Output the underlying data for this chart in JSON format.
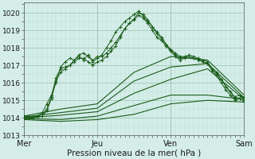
{
  "bg_color": "#d4ede8",
  "plot_bg_color": "#d4ede8",
  "grid_major_color": "#a0c8b8",
  "grid_minor_color": "#b8dcd4",
  "line_color": "#1a5c1a",
  "xlabel": "Pression niveau de la mer( hPa )",
  "ylim": [
    1013.0,
    1020.6
  ],
  "yticks": [
    1013,
    1014,
    1015,
    1016,
    1017,
    1018,
    1019,
    1020
  ],
  "day_labels": [
    "Mer",
    "Jeu",
    "Ven",
    "Sam"
  ],
  "day_positions": [
    0,
    96,
    192,
    288
  ],
  "total_hours": 288,
  "series": [
    {
      "x": [
        0,
        6,
        12,
        18,
        24,
        30,
        36,
        42,
        48,
        54,
        60,
        66,
        72,
        78,
        84,
        90,
        96,
        102,
        108,
        114,
        120,
        126,
        132,
        138,
        144,
        150,
        156,
        162,
        168,
        174,
        180,
        186,
        192,
        198,
        204,
        210,
        216,
        222,
        228,
        234,
        240,
        246,
        252,
        258,
        264,
        270,
        276,
        282,
        288
      ],
      "y": [
        1014.1,
        1014.1,
        1014.05,
        1014.1,
        1014.3,
        1014.8,
        1015.3,
        1016.0,
        1016.9,
        1017.2,
        1017.4,
        1017.3,
        1017.5,
        1017.3,
        1017.6,
        1017.2,
        1017.4,
        1017.6,
        1018.0,
        1018.4,
        1018.9,
        1019.2,
        1019.5,
        1019.7,
        1019.9,
        1020.1,
        1019.8,
        1019.5,
        1019.2,
        1018.8,
        1018.5,
        1018.2,
        1017.9,
        1017.7,
        1017.5,
        1017.5,
        1017.6,
        1017.5,
        1017.4,
        1017.3,
        1017.2,
        1016.8,
        1016.5,
        1016.2,
        1015.8,
        1015.5,
        1015.2,
        1015.3,
        1015.1
      ],
      "style": "marker"
    },
    {
      "x": [
        0,
        6,
        12,
        18,
        24,
        30,
        36,
        42,
        48,
        54,
        60,
        66,
        72,
        78,
        84,
        90,
        96,
        102,
        108,
        114,
        120,
        126,
        132,
        138,
        144,
        150,
        156,
        162,
        168,
        174,
        180,
        186,
        192,
        198,
        204,
        210,
        216,
        222,
        228,
        234,
        240,
        246,
        252,
        258,
        264,
        270,
        276,
        282,
        288
      ],
      "y": [
        1014.0,
        1014.0,
        1014.05,
        1014.1,
        1014.2,
        1014.5,
        1015.2,
        1016.3,
        1016.8,
        1016.9,
        1017.0,
        1017.3,
        1017.6,
        1017.7,
        1017.5,
        1017.3,
        1017.5,
        1017.5,
        1017.7,
        1018.0,
        1018.3,
        1018.7,
        1019.1,
        1019.4,
        1019.6,
        1019.85,
        1019.7,
        1019.4,
        1019.0,
        1018.6,
        1018.4,
        1018.1,
        1017.8,
        1017.5,
        1017.3,
        1017.4,
        1017.5,
        1017.4,
        1017.3,
        1017.2,
        1017.1,
        1016.7,
        1016.4,
        1016.0,
        1015.6,
        1015.3,
        1015.0,
        1015.1,
        1014.95
      ],
      "style": "marker"
    },
    {
      "x": [
        0,
        6,
        12,
        18,
        24,
        30,
        36,
        42,
        48,
        54,
        60,
        66,
        72,
        78,
        84,
        90,
        96,
        102,
        108,
        114,
        120,
        126,
        132,
        138,
        144,
        150,
        156,
        162,
        168,
        174,
        180,
        186,
        192,
        198,
        204,
        210,
        216,
        222,
        228,
        234,
        240,
        252,
        264,
        276,
        288
      ],
      "y": [
        1014.05,
        1014.0,
        1014.0,
        1014.05,
        1014.1,
        1014.4,
        1015.1,
        1016.1,
        1016.6,
        1016.8,
        1017.0,
        1017.2,
        1017.4,
        1017.4,
        1017.2,
        1017.0,
        1017.2,
        1017.3,
        1017.5,
        1017.8,
        1018.1,
        1018.6,
        1019.1,
        1019.4,
        1019.65,
        1020.0,
        1019.9,
        1019.6,
        1019.2,
        1018.9,
        1018.6,
        1018.2,
        1017.85,
        1017.6,
        1017.4,
        1017.45,
        1017.5,
        1017.4,
        1017.35,
        1017.2,
        1017.1,
        1016.6,
        1015.8,
        1015.1,
        1015.2
      ],
      "style": "marker"
    },
    {
      "x": [
        0,
        48,
        96,
        144,
        192,
        240,
        288
      ],
      "y": [
        1014.1,
        1014.5,
        1014.8,
        1016.6,
        1017.5,
        1017.3,
        1015.3
      ],
      "style": "smooth"
    },
    {
      "x": [
        0,
        48,
        96,
        144,
        192,
        240,
        288
      ],
      "y": [
        1014.05,
        1014.3,
        1014.55,
        1016.1,
        1016.9,
        1017.1,
        1015.15
      ],
      "style": "smooth"
    },
    {
      "x": [
        0,
        48,
        96,
        144,
        192,
        240,
        288
      ],
      "y": [
        1014.0,
        1014.15,
        1014.35,
        1015.4,
        1016.2,
        1016.8,
        1015.05
      ],
      "style": "smooth"
    },
    {
      "x": [
        0,
        48,
        96,
        144,
        192,
        240,
        288
      ],
      "y": [
        1013.95,
        1013.9,
        1014.1,
        1014.7,
        1015.3,
        1015.3,
        1015.05
      ],
      "style": "smooth"
    },
    {
      "x": [
        0,
        48,
        96,
        144,
        192,
        240,
        288
      ],
      "y": [
        1013.9,
        1013.8,
        1013.9,
        1014.2,
        1014.8,
        1015.0,
        1014.9
      ],
      "style": "smooth"
    }
  ]
}
